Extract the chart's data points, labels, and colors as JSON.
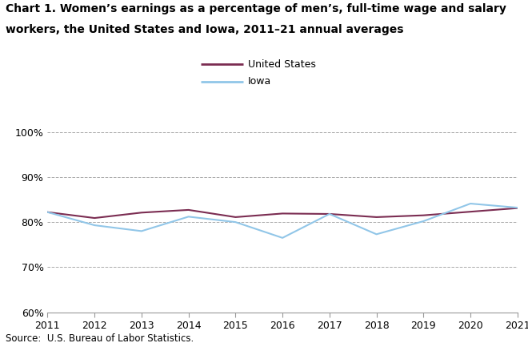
{
  "title_line1": "Chart 1. Women’s earnings as a percentage of men’s, full-time wage and salary",
  "title_line2": "workers, the United States and Iowa, 2011–21 annual averages",
  "source": "Source:  U.S. Bureau of Labor Statistics.",
  "years": [
    2011,
    2012,
    2013,
    2014,
    2015,
    2016,
    2017,
    2018,
    2019,
    2020,
    2021
  ],
  "us_values": [
    82.2,
    80.9,
    82.1,
    82.7,
    81.1,
    81.9,
    81.8,
    81.1,
    81.5,
    82.3,
    83.1
  ],
  "iowa_values": [
    82.2,
    79.3,
    78.0,
    81.2,
    80.0,
    76.5,
    81.8,
    77.3,
    80.2,
    84.1,
    83.2
  ],
  "us_color": "#7b2d52",
  "iowa_color": "#91c6e8",
  "ylim": [
    60,
    100
  ],
  "yticks": [
    60,
    70,
    80,
    90,
    100
  ],
  "ytick_labels": [
    "60%",
    "70%",
    "80%",
    "90%",
    "100%"
  ],
  "legend_us": "United States",
  "legend_iowa": "Iowa",
  "grid_color": "#aaaaaa",
  "line_width": 1.5,
  "background_color": "#ffffff"
}
